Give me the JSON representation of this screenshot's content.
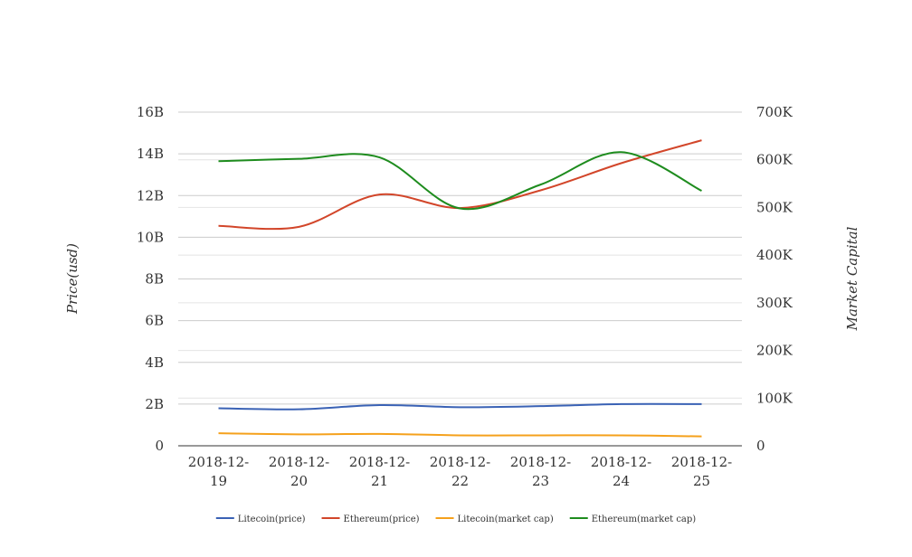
{
  "chart_data": {
    "type": "line",
    "title": "",
    "xlabel": "",
    "ylabel": "Price(usd)",
    "y2label": "Market Capital",
    "categories": [
      [
        "2018-12-",
        "19"
      ],
      [
        "2018-12-",
        "20"
      ],
      [
        "2018-12-",
        "21"
      ],
      [
        "2018-12-",
        "22"
      ],
      [
        "2018-12-",
        "23"
      ],
      [
        "2018-12-",
        "24"
      ],
      [
        "2018-12-",
        "25"
      ]
    ],
    "ylim": [
      0,
      16000000000
    ],
    "y2lim": [
      0,
      700000
    ],
    "yticks": [
      "0",
      "2B",
      "4B",
      "6B",
      "8B",
      "10B",
      "12B",
      "14B",
      "16B"
    ],
    "y2ticks": [
      "0",
      "100K",
      "200K",
      "300K",
      "400K",
      "500K",
      "600K",
      "700K"
    ],
    "grid": true,
    "legend_position": "bottom",
    "series": [
      {
        "name": "Litecoin(price)",
        "axis": "left",
        "color": "#3a62b5",
        "values": [
          1800000000,
          1750000000,
          1950000000,
          1850000000,
          1900000000,
          2000000000,
          2000000000
        ]
      },
      {
        "name": "Ethereum(price)",
        "axis": "left",
        "color": "#d2462a",
        "values": [
          10550000000,
          10500000000,
          12050000000,
          11400000000,
          12250000000,
          13550000000,
          14650000000
        ]
      },
      {
        "name": "Litecoin(market cap)",
        "axis": "left",
        "color": "#f5a11c",
        "values": [
          600000000,
          550000000,
          570000000,
          500000000,
          500000000,
          500000000,
          450000000
        ]
      },
      {
        "name": "Ethereum(market cap)",
        "axis": "right",
        "color": "#1e8c1e",
        "values": [
          597000,
          602000,
          605000,
          498000,
          548000,
          616000,
          535000
        ]
      }
    ]
  }
}
